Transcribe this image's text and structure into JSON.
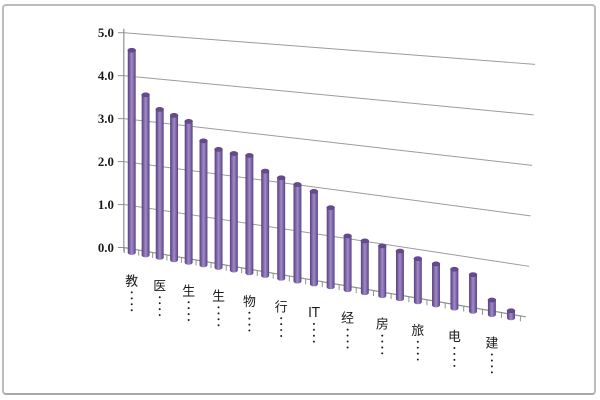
{
  "chart_data": {
    "type": "bar",
    "subtype": "3d-cylinder-perspective",
    "title": "",
    "xlabel": "",
    "ylabel": "",
    "ylim": [
      0,
      5
    ],
    "ytick_step": 1.0,
    "ytick_labels": [
      "5.0",
      "4.0",
      "3.0",
      "2.0",
      "1.0",
      "0.0"
    ],
    "grid": true,
    "legend": false,
    "bar_count": 24,
    "label_every_nth_bar": 2,
    "category_labels_truncated": true,
    "category_labels_visible": [
      "教…",
      "医…",
      "生…",
      "生…",
      "物…",
      "行…",
      "IT…",
      "经…",
      "房…",
      "旅…",
      "电…",
      "建…"
    ],
    "values": [
      4.7,
      3.7,
      3.4,
      3.3,
      3.2,
      2.8,
      2.65,
      2.6,
      2.6,
      2.3,
      2.2,
      2.1,
      2.0,
      1.7,
      1.15,
      1.1,
      1.05,
      1.0,
      0.9,
      0.85,
      0.8,
      0.75,
      0.3,
      0.15
    ],
    "colors": {
      "bar_fill": "#7a62a6",
      "bar_edge_dark": "#57407f",
      "bar_highlight": "#a18cc4",
      "bar_top_cap": "#654a8e",
      "gridline": "#9b9b9b",
      "axis": "#8f8f8f",
      "text": "#1a1a1a",
      "frame_border": "#bcbcc0",
      "background": "#ffffff"
    }
  }
}
